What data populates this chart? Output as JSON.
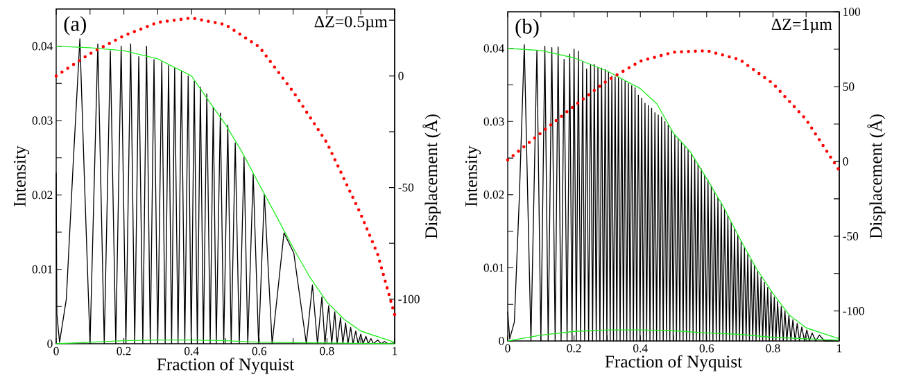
{
  "chart_data": [
    {
      "type": "line",
      "xlabel": "Fraction of Nyquist",
      "ylabel": "Intensity",
      "y2label": "Displacement (Å)",
      "annotations": [
        "(a)",
        "ΔZ=0.5µm"
      ],
      "xlim": [
        0,
        1
      ],
      "ylim": [
        0,
        0.045
      ],
      "y2lim": [
        -120,
        30
      ],
      "xticks": [
        0,
        {
          "value": 0.1,
          "label": null
        },
        0.2,
        {
          "value": 0.3,
          "label": null
        },
        0.4,
        {
          "value": 0.5,
          "label": null
        },
        0.6,
        {
          "value": 0.7,
          "label": null
        },
        0.8,
        {
          "value": 0.9,
          "label": null
        },
        1
      ],
      "yticks": [
        0,
        {
          "value": 0.005,
          "label": null
        },
        0.01,
        {
          "value": 0.015,
          "label": null
        },
        0.02,
        {
          "value": 0.025,
          "label": null
        },
        0.03,
        {
          "value": 0.035,
          "label": null
        },
        0.04
      ],
      "y2ticks": [
        -100,
        {
          "value": -75,
          "label": null
        },
        -50,
        {
          "value": -25,
          "label": null
        },
        0,
        {
          "value": 25,
          "label": null
        }
      ],
      "series": [
        {
          "color": "#000000",
          "x": [
            0,
            0.002,
            0.01,
            0.03,
            0.05,
            0.07,
            0.085,
            0.1,
            0.123,
            0.142,
            0.16,
            0.176,
            0.192,
            0.206,
            0.22,
            0.232,
            0.244,
            0.256,
            0.267,
            0.278,
            0.289,
            0.3,
            0.312,
            0.322,
            0.332,
            0.341,
            0.35,
            0.36,
            0.37,
            0.38,
            0.39,
            0.399,
            0.408,
            0.417,
            0.426,
            0.435,
            0.445,
            0.455,
            0.464,
            0.473,
            0.485,
            0.495,
            0.507,
            0.517,
            0.529,
            0.541,
            0.555,
            0.566,
            0.582,
            0.598,
            0.615,
            0.638,
            0.673,
            0.702,
            0.739,
            0.757,
            0.772,
            0.785,
            0.794,
            0.805,
            0.814,
            0.823,
            0.83,
            0.84,
            0.847,
            0.855,
            0.862,
            0.87,
            0.877,
            0.885,
            0.892,
            0.9,
            0.907,
            0.915,
            0.922,
            0.93,
            0.937,
            0.95,
            0.96,
            0.97,
            0.98,
            1
          ],
          "values": [
            0.023,
            0.004,
            0.0002,
            0.006,
            0.024,
            0.041,
            0.02,
            0,
            0.0403,
            0,
            0.0394,
            0,
            0.04,
            0,
            0.0403,
            0,
            0.0386,
            0,
            0.04,
            0,
            0.0382,
            0,
            0.0379,
            0,
            0.0374,
            0,
            0.0371,
            0,
            0.0366,
            0,
            0.036,
            0,
            0.0353,
            0,
            0.0345,
            0,
            0.0336,
            0,
            0.0318,
            0,
            0.031,
            0,
            0.0294,
            0,
            0.027,
            0,
            0.0251,
            0,
            0.0228,
            0,
            0.0201,
            0,
            0.0149,
            0.0122,
            0,
            0.0079,
            0,
            0.0063,
            0,
            0.0051,
            0,
            0.0043,
            0,
            0.0035,
            0,
            0.0028,
            0,
            0.0022,
            0,
            0.0017,
            0,
            0.0013,
            0,
            0.001,
            0,
            0.0007,
            0,
            0.0005,
            0,
            0.0003,
            0,
            0.0001
          ]
        },
        {
          "color": "#22ee22",
          "x": [
            0,
            0.1,
            0.2,
            0.3,
            0.4,
            0.45,
            0.5,
            0.55,
            0.6,
            0.65,
            0.7,
            0.75,
            0.8,
            0.85,
            0.9,
            1
          ],
          "values": [
            0.04,
            0.0398,
            0.0394,
            0.0383,
            0.036,
            0.0327,
            0.0295,
            0.0257,
            0.0214,
            0.0172,
            0.0129,
            0.0089,
            0.0056,
            0.0033,
            0.0017,
            0.0002
          ]
        },
        {
          "color": "#22ee22",
          "x": [
            0,
            0.1,
            0.2,
            0.3,
            0.4,
            0.5,
            0.6,
            0.8,
            1
          ],
          "values": [
            0,
            0.0002,
            0.0004,
            0.0005,
            0.0005,
            0.0004,
            0.0002,
            0.0001,
            0
          ]
        },
        {
          "color": "#ff0000",
          "axis": "y2",
          "line_style": "dotted",
          "x": [
            0,
            0.05,
            0.1,
            0.2,
            0.3,
            0.4,
            0.5,
            0.6,
            0.7,
            0.8,
            0.9,
            0.95,
            1
          ],
          "values": [
            0,
            5,
            10,
            18,
            24,
            26,
            23,
            13,
            -7,
            -30,
            -62,
            -80,
            -107
          ]
        }
      ]
    },
    {
      "type": "line",
      "xlabel": "Fraction of Nyquist",
      "ylabel": "Intensity",
      "y2label": "Displacement (Å)",
      "annotations": [
        "(b)",
        "ΔZ=1µm"
      ],
      "xlim": [
        0,
        1
      ],
      "ylim": [
        0,
        0.045
      ],
      "y2lim": [
        -120,
        100
      ],
      "xticks": [
        0,
        {
          "value": 0.1,
          "label": null
        },
        0.2,
        {
          "value": 0.3,
          "label": null
        },
        0.4,
        {
          "value": 0.5,
          "label": null
        },
        0.6,
        {
          "value": 0.7,
          "label": null
        },
        0.8,
        {
          "value": 0.9,
          "label": null
        },
        1
      ],
      "yticks": [
        0,
        {
          "value": 0.005,
          "label": null
        },
        0.01,
        {
          "value": 0.015,
          "label": null
        },
        0.02,
        {
          "value": 0.025,
          "label": null
        },
        0.03,
        {
          "value": 0.035,
          "label": null
        },
        0.04
      ],
      "y2ticks": [
        -100,
        {
          "value": -75,
          "label": null
        },
        -50,
        {
          "value": -25,
          "label": null
        },
        0,
        {
          "value": 25,
          "label": null
        },
        50,
        {
          "value": 75,
          "label": null
        },
        100
      ],
      "series": [
        {
          "color": "#000000",
          "x": [
            0,
            0.006,
            0.02,
            0.035,
            0.05,
            0.07,
            0.088,
            0.1,
            0.112,
            0.122,
            0.133,
            0.143,
            0.152,
            0.161,
            0.17,
            0.179,
            0.187,
            0.194,
            0.2,
            0.207,
            0.213,
            0.22,
            0.226,
            0.232,
            0.238,
            0.244,
            0.25,
            0.256,
            0.261,
            0.267,
            0.272,
            0.278,
            0.283,
            0.289,
            0.294,
            0.299,
            0.304,
            0.309,
            0.314,
            0.319,
            0.324,
            0.329,
            0.334,
            0.339,
            0.344,
            0.349,
            0.354,
            0.359,
            0.364,
            0.369,
            0.374,
            0.379,
            0.384,
            0.389,
            0.394,
            0.399,
            0.404,
            0.409,
            0.414,
            0.419,
            0.424,
            0.429,
            0.434,
            0.439,
            0.444,
            0.449,
            0.454,
            0.459,
            0.464,
            0.469,
            0.474,
            0.479,
            0.484,
            0.489,
            0.494,
            0.499,
            0.504,
            0.509,
            0.514,
            0.519,
            0.524,
            0.529,
            0.534,
            0.539,
            0.544,
            0.549,
            0.554,
            0.559,
            0.564,
            0.569,
            0.574,
            0.579,
            0.584,
            0.589,
            0.594,
            0.599,
            0.604,
            0.609,
            0.614,
            0.619,
            0.624,
            0.629,
            0.634,
            0.639,
            0.644,
            0.649,
            0.654,
            0.659,
            0.664,
            0.669,
            0.674,
            0.679,
            0.684,
            0.689,
            0.694,
            0.699,
            0.704,
            0.709,
            0.714,
            0.719,
            0.724,
            0.729,
            0.734,
            0.739,
            0.744,
            0.749,
            0.754,
            0.759,
            0.764,
            0.769,
            0.774,
            0.779,
            0.784,
            0.789,
            0.794,
            0.799,
            0.804,
            0.809,
            0.814,
            0.82,
            0.825,
            0.831,
            0.836,
            0.842,
            0.848,
            0.854,
            0.86,
            0.867,
            0.873,
            0.88,
            0.887,
            0.895,
            0.902,
            0.91,
            0.918,
            0.929,
            0.94,
            0.955,
            1
          ],
          "values": [
            0.004,
            0.0003,
            0.0026,
            0.0196,
            0.0405,
            0,
            0.0397,
            0,
            0.0403,
            0,
            0.0401,
            0,
            0.0402,
            0,
            0.0385,
            0,
            0.0392,
            0,
            0.0399,
            0,
            0.0396,
            0,
            0.0382,
            0,
            0.0372,
            0,
            0.0378,
            0,
            0.0378,
            0,
            0.0374,
            0,
            0.0373,
            0,
            0.0371,
            0,
            0.0368,
            0,
            0.0362,
            0,
            0.0361,
            0,
            0.036,
            0,
            0.0358,
            0,
            0.0355,
            0,
            0.0352,
            0,
            0.0349,
            0,
            0.0346,
            0,
            0.0336,
            0,
            0.0332,
            0,
            0.0325,
            0,
            0.0322,
            0,
            0.0318,
            0,
            0.0312,
            0,
            0.0309,
            0,
            0.0306,
            0,
            0.03,
            0,
            0.0295,
            0,
            0.0288,
            0,
            0.0281,
            0,
            0.0277,
            0,
            0.0272,
            0,
            0.0267,
            0,
            0.0261,
            0,
            0.0255,
            0,
            0.0249,
            0,
            0.0242,
            0,
            0.0235,
            0,
            0.0227,
            0,
            0.022,
            0,
            0.0212,
            0,
            0.0204,
            0,
            0.0196,
            0,
            0.0188,
            0,
            0.018,
            0,
            0.0171,
            0,
            0.0162,
            0,
            0.0153,
            0,
            0.0145,
            0,
            0.0136,
            0,
            0.0128,
            0,
            0.0119,
            0,
            0.0111,
            0,
            0.0103,
            0,
            0.0095,
            0,
            0.0087,
            0,
            0.008,
            0,
            0.0073,
            0,
            0.0067,
            0,
            0.006,
            0,
            0.0054,
            0,
            0.0047,
            0,
            0.0041,
            0,
            0.0035,
            0,
            0.0029,
            0,
            0.0024,
            0,
            0.0019,
            0,
            0.0015,
            0,
            0.0011,
            0,
            0.0008,
            0,
            0
          ]
        },
        {
          "color": "#22ee22",
          "x": [
            0,
            0.1,
            0.2,
            0.3,
            0.4,
            0.45,
            0.5,
            0.55,
            0.6,
            0.65,
            0.7,
            0.75,
            0.8,
            0.85,
            0.9,
            1
          ],
          "values": [
            0.04,
            0.0397,
            0.0387,
            0.0369,
            0.0345,
            0.0324,
            0.0284,
            0.0259,
            0.0222,
            0.0184,
            0.014,
            0.0099,
            0.0065,
            0.0035,
            0.0018,
            0.0003
          ]
        },
        {
          "color": "#22ee22",
          "x": [
            0,
            0.1,
            0.2,
            0.3,
            0.4,
            0.5,
            0.6,
            0.7,
            0.8,
            0.9,
            1
          ],
          "values": [
            0,
            0.0008,
            0.0013,
            0.0015,
            0.0015,
            0.0014,
            0.0011,
            0.0009,
            0.0005,
            0.0003,
            0.0001
          ]
        },
        {
          "color": "#ff0000",
          "axis": "y2",
          "line_style": "dotted",
          "x": [
            0,
            0.1,
            0.2,
            0.3,
            0.4,
            0.5,
            0.6,
            0.7,
            0.8,
            0.9,
            0.95,
            1
          ],
          "values": [
            1,
            19,
            37,
            54,
            67,
            73,
            74,
            68,
            52,
            28,
            11,
            -6
          ]
        }
      ]
    }
  ]
}
